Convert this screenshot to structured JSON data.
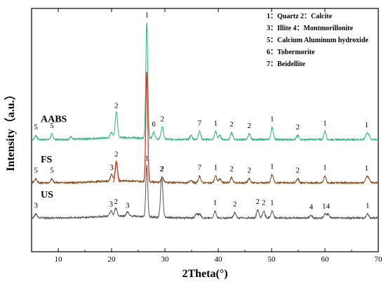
{
  "chart_data": {
    "type": "line",
    "xlabel": "2Theta(°)",
    "ylabel": "Intensity（a.u.）",
    "xlim": [
      5,
      70
    ],
    "x_ticks": [
      10,
      20,
      30,
      40,
      50,
      60,
      70
    ],
    "grid": false,
    "legend": [
      "1：Quartz 2：Calcite",
      "3：Illite   4：Montmorillonite",
      "5：Calcium Aluminum hydroxide",
      "6：Tobermorite",
      "7：Beidellite"
    ],
    "legend_position": "top-right",
    "series": [
      {
        "name": "AABS",
        "color": "#2db37f",
        "baseline": 0.5,
        "label_y": 9.6,
        "peaks": [
          {
            "x": 5.8,
            "h": 0.3
          },
          {
            "x": 8.8,
            "h": 0.4
          },
          {
            "x": 12.4,
            "h": 0.2
          },
          {
            "x": 20.0,
            "h": 0.4
          },
          {
            "x": 20.9,
            "h": 1.9
          },
          {
            "x": 26.6,
            "h": 8.6
          },
          {
            "x": 27.9,
            "h": 0.5
          },
          {
            "x": 29.5,
            "h": 0.9
          },
          {
            "x": 34.9,
            "h": 0.3
          },
          {
            "x": 36.5,
            "h": 0.6
          },
          {
            "x": 39.5,
            "h": 0.6
          },
          {
            "x": 40.3,
            "h": 0.3
          },
          {
            "x": 42.5,
            "h": 0.5
          },
          {
            "x": 45.8,
            "h": 0.4
          },
          {
            "x": 50.1,
            "h": 0.9
          },
          {
            "x": 54.9,
            "h": 0.3
          },
          {
            "x": 60.0,
            "h": 0.6
          },
          {
            "x": 67.8,
            "h": 0.4
          },
          {
            "x": 68.2,
            "h": 0.3
          }
        ],
        "annotations": [
          {
            "x": 5.8,
            "text": "5"
          },
          {
            "x": 8.8,
            "text": "5"
          },
          {
            "x": 20.9,
            "text": "2"
          },
          {
            "x": 26.6,
            "text": "1"
          },
          {
            "x": 27.9,
            "text": "6"
          },
          {
            "x": 29.5,
            "text": "2"
          },
          {
            "x": 36.5,
            "text": "7"
          },
          {
            "x": 39.5,
            "text": "1"
          },
          {
            "x": 42.5,
            "text": "2"
          },
          {
            "x": 45.8,
            "text": "2"
          },
          {
            "x": 50.1,
            "text": "1"
          },
          {
            "x": 54.9,
            "text": "2"
          },
          {
            "x": 60.0,
            "text": "1"
          },
          {
            "x": 67.8,
            "text": "1"
          }
        ]
      },
      {
        "name": "FS",
        "color": "#8a4a1a",
        "peak_color": "#e8321c",
        "baseline": 0.5,
        "label_y": 6.6,
        "peaks": [
          {
            "x": 5.8,
            "h": 0.3
          },
          {
            "x": 8.8,
            "h": 0.3
          },
          {
            "x": 20.0,
            "h": 0.5
          },
          {
            "x": 20.9,
            "h": 1.5
          },
          {
            "x": 26.6,
            "h": 8.2
          },
          {
            "x": 29.5,
            "h": 0.4
          },
          {
            "x": 34.9,
            "h": 0.2
          },
          {
            "x": 36.5,
            "h": 0.5
          },
          {
            "x": 39.5,
            "h": 0.5
          },
          {
            "x": 40.3,
            "h": 0.3
          },
          {
            "x": 42.5,
            "h": 0.4
          },
          {
            "x": 45.8,
            "h": 0.3
          },
          {
            "x": 50.1,
            "h": 0.6
          },
          {
            "x": 54.9,
            "h": 0.3
          },
          {
            "x": 60.0,
            "h": 0.5
          },
          {
            "x": 67.8,
            "h": 0.4
          },
          {
            "x": 68.2,
            "h": 0.3
          }
        ],
        "annotations": [
          {
            "x": 5.8,
            "text": "5"
          },
          {
            "x": 8.8,
            "text": "5"
          },
          {
            "x": 20.0,
            "text": "3"
          },
          {
            "x": 20.9,
            "text": "2"
          },
          {
            "x": 29.5,
            "text": "2"
          },
          {
            "x": 36.5,
            "text": "7"
          },
          {
            "x": 39.5,
            "text": "1"
          },
          {
            "x": 42.5,
            "text": "2"
          },
          {
            "x": 45.8,
            "text": "2"
          },
          {
            "x": 50.1,
            "text": "1"
          },
          {
            "x": 54.9,
            "text": "2"
          },
          {
            "x": 60.0,
            "text": "1"
          },
          {
            "x": 67.8,
            "text": "1"
          }
        ]
      },
      {
        "name": "US",
        "color": "#555555",
        "baseline": 0.5,
        "label_y": 4.0,
        "peaks": [
          {
            "x": 5.8,
            "h": 0.3
          },
          {
            "x": 19.9,
            "h": 0.4
          },
          {
            "x": 20.8,
            "h": 0.6
          },
          {
            "x": 23.0,
            "h": 0.3
          },
          {
            "x": 26.6,
            "h": 3.8
          },
          {
            "x": 29.4,
            "h": 3.0
          },
          {
            "x": 35.9,
            "h": 0.3
          },
          {
            "x": 36.5,
            "h": 0.3
          },
          {
            "x": 39.4,
            "h": 0.5
          },
          {
            "x": 43.1,
            "h": 0.4
          },
          {
            "x": 47.4,
            "h": 0.6
          },
          {
            "x": 48.5,
            "h": 0.5
          },
          {
            "x": 50.1,
            "h": 0.5
          },
          {
            "x": 57.4,
            "h": 0.2
          },
          {
            "x": 60.0,
            "h": 0.3
          },
          {
            "x": 60.6,
            "h": 0.3
          },
          {
            "x": 68.0,
            "h": 0.3
          }
        ],
        "annotations": [
          {
            "x": 5.8,
            "text": "3"
          },
          {
            "x": 19.9,
            "text": "3"
          },
          {
            "x": 20.8,
            "text": "2"
          },
          {
            "x": 23.0,
            "text": "3"
          },
          {
            "x": 26.6,
            "text": "1"
          },
          {
            "x": 29.4,
            "text": "2"
          },
          {
            "x": 39.4,
            "text": "1"
          },
          {
            "x": 43.1,
            "text": "2"
          },
          {
            "x": 47.4,
            "text": "2"
          },
          {
            "x": 48.5,
            "text": "2"
          },
          {
            "x": 50.1,
            "text": "1"
          },
          {
            "x": 57.4,
            "text": "4"
          },
          {
            "x": 60.2,
            "text": "14"
          },
          {
            "x": 68.0,
            "text": "1"
          }
        ]
      }
    ]
  }
}
